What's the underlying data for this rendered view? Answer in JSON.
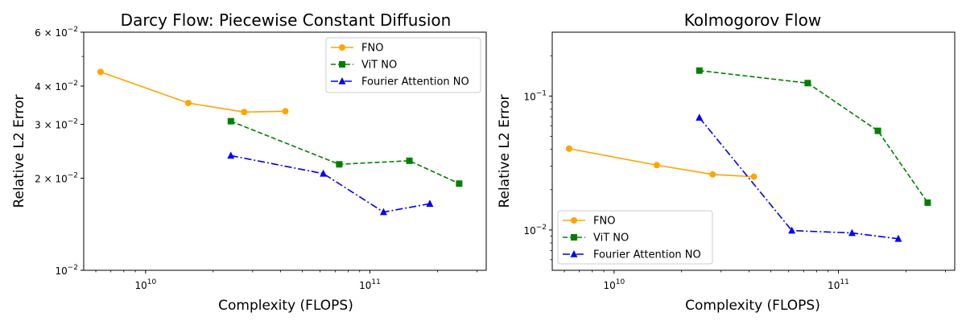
{
  "chart_data": [
    {
      "type": "line",
      "title": "Darcy Flow: Piecewise Constant Diffusion",
      "xlabel": "Complexity (FLOPS)",
      "ylabel": "Relative L2 Error",
      "xscale": "log",
      "yscale": "log",
      "xlim": [
        5300000000.0,
        330000000000.0
      ],
      "ylim": [
        0.01,
        0.06
      ],
      "xticks": [
        {
          "value": 10000000000.0,
          "base": "10",
          "exp": "10"
        },
        {
          "value": 100000000000.0,
          "base": "10",
          "exp": "11"
        }
      ],
      "yticks": [
        {
          "value": 0.01,
          "mant": "10",
          "exp": "−2"
        },
        {
          "value": 0.02,
          "mant": "2 × 10",
          "exp": "−2"
        },
        {
          "value": 0.03,
          "mant": "3 × 10",
          "exp": "−2"
        },
        {
          "value": 0.04,
          "mant": "4 × 10",
          "exp": "−2"
        },
        {
          "value": 0.06,
          "mant": "6 × 10",
          "exp": "−2"
        }
      ],
      "legend_position": "top-right",
      "series": [
        {
          "name": "FNO",
          "color": "#ffa500",
          "dash": "",
          "marker": "circle",
          "x": [
            6300000000.0,
            15500000000.0,
            27500000000.0,
            42000000000.0
          ],
          "y": [
            0.0445,
            0.0352,
            0.0329,
            0.0331
          ]
        },
        {
          "name": "ViT NO",
          "color": "#008000",
          "dash": "6,3",
          "marker": "square",
          "x": [
            24000000000.0,
            73000000000.0,
            150000000000.0,
            250000000000.0
          ],
          "y": [
            0.0307,
            0.0222,
            0.0228,
            0.0192
          ]
        },
        {
          "name": "Fourier Attention NO",
          "color": "#0000ff",
          "dash": "9,3,2,3",
          "marker": "triangle",
          "x": [
            24000000000.0,
            62000000000.0,
            115000000000.0,
            185000000000.0
          ],
          "y": [
            0.0237,
            0.0207,
            0.0155,
            0.0165
          ]
        }
      ]
    },
    {
      "type": "line",
      "title": "Kolmogorov Flow",
      "xlabel": "Complexity (FLOPS)",
      "ylabel": "Relative L2 Error",
      "xscale": "log",
      "yscale": "log",
      "xlim": [
        5300000000.0,
        330000000000.0
      ],
      "ylim": [
        0.005,
        0.3
      ],
      "xticks": [
        {
          "value": 10000000000.0,
          "base": "10",
          "exp": "10"
        },
        {
          "value": 100000000000.0,
          "base": "10",
          "exp": "11"
        }
      ],
      "yticks": [
        {
          "value": 0.01,
          "mant": "10",
          "exp": "−2"
        },
        {
          "value": 0.1,
          "mant": "10",
          "exp": "−1"
        }
      ],
      "legend_position": "bottom-left",
      "series": [
        {
          "name": "FNO",
          "color": "#ffa500",
          "dash": "",
          "marker": "circle",
          "x": [
            6300000000.0,
            15500000000.0,
            27500000000.0,
            42000000000.0
          ],
          "y": [
            0.0405,
            0.0305,
            0.026,
            0.025
          ]
        },
        {
          "name": "ViT NO",
          "color": "#008000",
          "dash": "6,3",
          "marker": "square",
          "x": [
            24000000000.0,
            73000000000.0,
            150000000000.0,
            250000000000.0
          ],
          "y": [
            0.155,
            0.125,
            0.055,
            0.016
          ]
        },
        {
          "name": "Fourier Attention NO",
          "color": "#0000ff",
          "dash": "9,3,2,3",
          "marker": "triangle",
          "x": [
            24000000000.0,
            62000000000.0,
            115000000000.0,
            185000000000.0
          ],
          "y": [
            0.069,
            0.0099,
            0.0095,
            0.0086
          ]
        }
      ]
    }
  ]
}
